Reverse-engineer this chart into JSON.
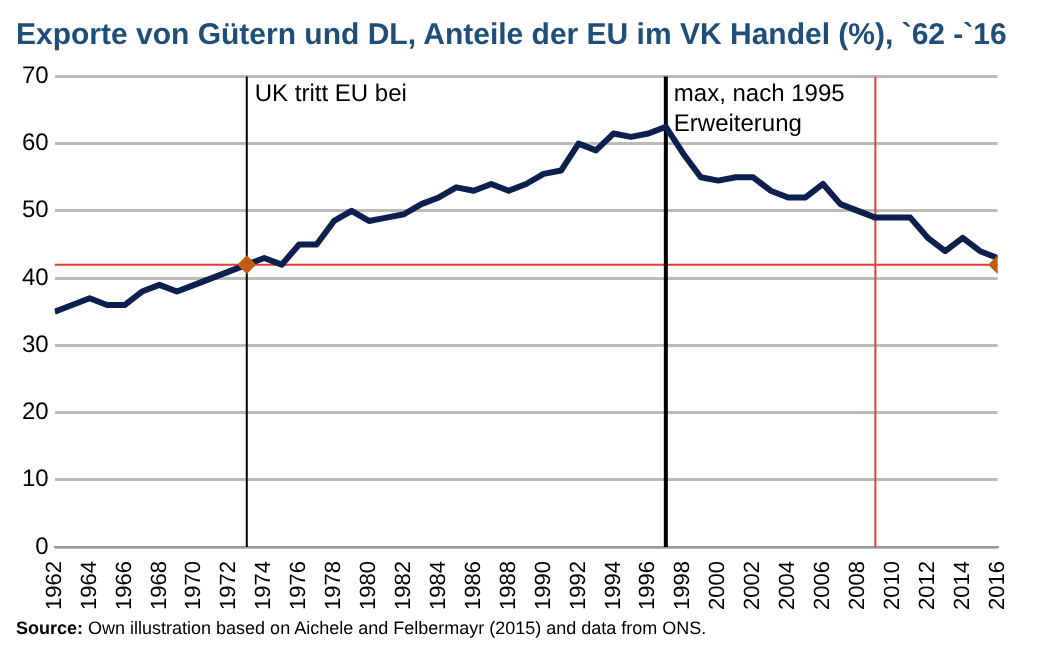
{
  "chart_data": {
    "type": "line",
    "title": "Exporte von Gütern und DL, Anteile der EU im VK Handel (%), `62 -`16",
    "x": [
      1962,
      1963,
      1964,
      1965,
      1966,
      1967,
      1968,
      1969,
      1970,
      1971,
      1972,
      1973,
      1974,
      1975,
      1976,
      1977,
      1978,
      1979,
      1980,
      1981,
      1982,
      1983,
      1984,
      1985,
      1986,
      1987,
      1988,
      1989,
      1990,
      1991,
      1992,
      1993,
      1994,
      1995,
      1996,
      1997,
      1998,
      1999,
      2000,
      2001,
      2002,
      2003,
      2004,
      2005,
      2006,
      2007,
      2008,
      2009,
      2010,
      2011,
      2012,
      2013,
      2014,
      2015,
      2016
    ],
    "series": [
      {
        "type": "line",
        "color": "#0d1f4f",
        "values": [
          35,
          36,
          37,
          36,
          36,
          38,
          39,
          38,
          39,
          40,
          41,
          42,
          43,
          42,
          45,
          45,
          48.5,
          50,
          48.5,
          49,
          49.5,
          51,
          52,
          53.5,
          53,
          54,
          53,
          54,
          55.5,
          56,
          60,
          59,
          61.5,
          61,
          61.5,
          62.5,
          58.5,
          55,
          54.5,
          55,
          55,
          53,
          52,
          52,
          54,
          51,
          50,
          49,
          49,
          49,
          46,
          44,
          46,
          44,
          43
        ]
      },
      {
        "type": "scatter",
        "color": "#c55a11",
        "marker": "diamond",
        "x": [
          1973,
          2016
        ],
        "values": [
          42,
          42
        ]
      }
    ],
    "xlim": [
      1962,
      2016
    ],
    "xticks": [
      1962,
      1964,
      1966,
      1968,
      1970,
      1972,
      1974,
      1976,
      1978,
      1980,
      1982,
      1984,
      1986,
      1988,
      1990,
      1992,
      1994,
      1996,
      1998,
      2000,
      2002,
      2004,
      2006,
      2008,
      2010,
      2012,
      2014,
      2016
    ],
    "ylim": [
      0,
      70
    ],
    "yticks": [
      0,
      10,
      20,
      30,
      40,
      50,
      60,
      70
    ],
    "grid": "y",
    "legend": false,
    "ref_lines": [
      {
        "axis": "y",
        "value": 42,
        "color": "#e0403a"
      },
      {
        "axis": "x",
        "value": 1973,
        "label": "UK tritt EU bei",
        "color": "#000000"
      },
      {
        "axis": "x",
        "value": 1997,
        "label": "max, nach 1995 Erweiterung",
        "color": "#000000"
      },
      {
        "axis": "x",
        "value": 2009,
        "color": "#e0403a"
      }
    ],
    "annotations": [
      "Source: Own illustration based on Aichele and Felbermayr (2015) and data from ONS."
    ]
  }
}
